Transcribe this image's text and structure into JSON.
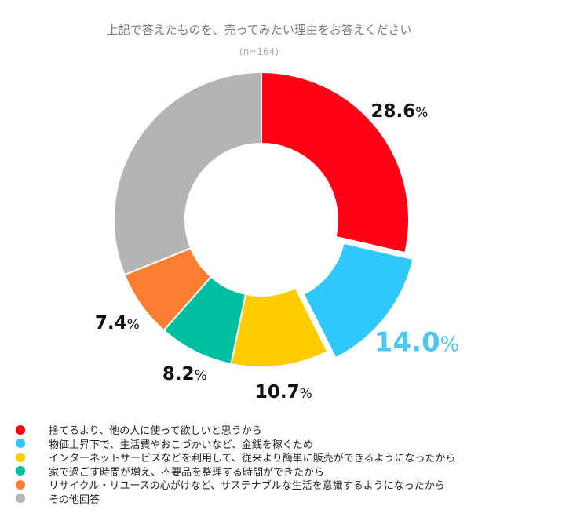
{
  "chart_data": {
    "type": "pie",
    "variant": "donut",
    "title": "上記で答えたものを、売ってみたい理由をお答えください",
    "subtitle": "(n=164)",
    "categories": [
      "捨てるより、他の人に使って欲しいと思うから",
      "物価上昇下で、生活費やおこづかいなど、金銭を稼ぐため",
      "インターネットサービスなどを利用して、従来より簡単に販売ができるようになったから",
      "家で過ごす時間が増え、不要品を整理する時間ができたから",
      "リサイクル・リユースの心がけなど、サステナブルな生活を意識するようになったから",
      "その他回答"
    ],
    "values": [
      28.6,
      14.0,
      10.7,
      8.2,
      7.4,
      31.1
    ],
    "labels": [
      "28.6",
      "14.0",
      "10.7",
      "8.2",
      "7.4"
    ],
    "unit": "%",
    "colors": [
      "#ff0015",
      "#30c8fa",
      "#ffcc00",
      "#00bfa0",
      "#fb7f30",
      "#b4b4b4"
    ],
    "exploded_index": 1,
    "highlight_label_color": "#4fc6ef",
    "label_color": "#111111"
  }
}
